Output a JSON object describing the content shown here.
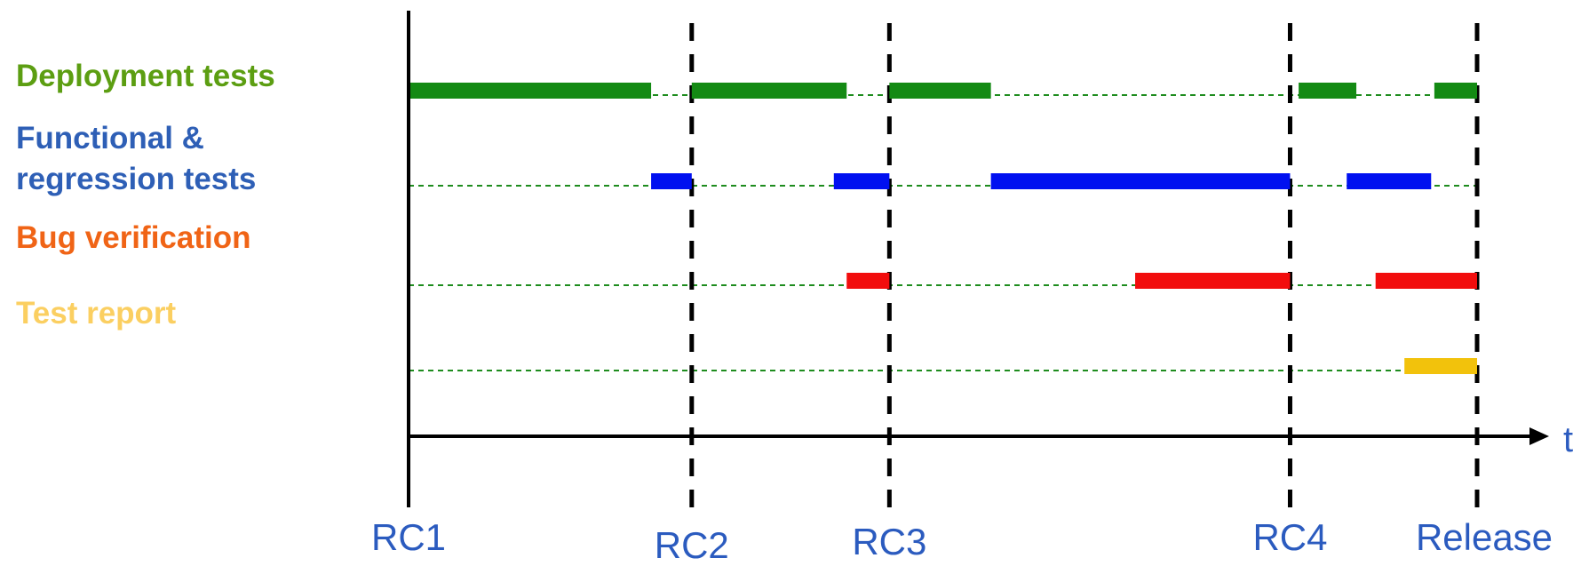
{
  "colors": {
    "axis": "#000000",
    "guide": "#1e8c1e",
    "milestone_label": "#2b5bbf"
  },
  "chart_data": {
    "type": "gantt-timeline",
    "axis_label": "t",
    "milestones": [
      {
        "name": "RC1",
        "t": 0
      },
      {
        "name": "RC2",
        "t": 2.65
      },
      {
        "name": "RC3",
        "t": 4.5
      },
      {
        "name": "RC4",
        "t": 8.25
      },
      {
        "name": "Release",
        "t": 10
      }
    ],
    "tracks": [
      {
        "label": "Deployment tests",
        "color": "#138a13",
        "label_color": "#5c9e12",
        "segments": [
          [
            0,
            2.27
          ],
          [
            2.65,
            4.1
          ],
          [
            4.5,
            5.45
          ],
          [
            8.33,
            8.87
          ],
          [
            9.6,
            10
          ]
        ]
      },
      {
        "label": "Functional &\nregression tests",
        "color": "#0010f0",
        "label_color": "#2e5fb6",
        "segments": [
          [
            2.27,
            2.65
          ],
          [
            3.98,
            4.5
          ],
          [
            5.45,
            8.25
          ],
          [
            8.78,
            9.57
          ]
        ]
      },
      {
        "label": "Bug verification",
        "color": "#f20d0d",
        "label_color": "#f06416",
        "segments": [
          [
            4.1,
            4.5
          ],
          [
            6.8,
            8.25
          ],
          [
            9.05,
            10
          ]
        ]
      },
      {
        "label": "Test report",
        "color": "#f2c20c",
        "label_color": "#fbcf61",
        "segments": [
          [
            9.32,
            10
          ]
        ]
      }
    ]
  }
}
